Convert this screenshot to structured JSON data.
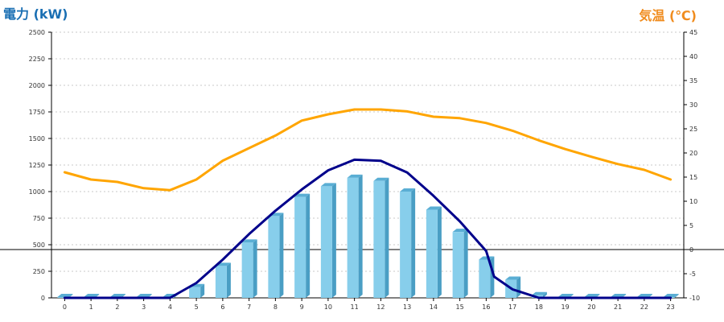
{
  "chart_data": {
    "type": "bar",
    "title_left": "電力 (kW)",
    "title_right": "気温 (℃)",
    "categories": [
      "0",
      "1",
      "2",
      "3",
      "4",
      "5",
      "6",
      "7",
      "8",
      "9",
      "10",
      "11",
      "12",
      "13",
      "14",
      "15",
      "16",
      "17",
      "18",
      "19",
      "20",
      "21",
      "22",
      "23"
    ],
    "y_left": {
      "min": 0,
      "max": 2500,
      "ticks": [
        "0",
        "250",
        "500",
        "750",
        "1000",
        "1250",
        "1500",
        "1750",
        "2000",
        "2250",
        "2500"
      ]
    },
    "y_right": {
      "min": -10,
      "max": 45,
      "ticks": [
        "-10",
        "-5",
        "0",
        "5",
        "10",
        "15",
        "20",
        "25",
        "30",
        "35",
        "40",
        "45"
      ]
    },
    "grid": true,
    "series": [
      {
        "kind": "bar",
        "axis": "left",
        "color": "#87ceeb",
        "values": [
          0,
          0,
          0,
          0,
          0,
          100,
          300,
          520,
          770,
          950,
          1050,
          1130,
          1100,
          1000,
          830,
          620,
          360,
          170,
          25,
          0,
          0,
          0,
          0,
          0
        ]
      },
      {
        "kind": "line",
        "axis": "left",
        "color": "#00008b",
        "x": [
          0,
          4,
          5,
          6,
          7,
          8,
          9,
          10,
          11,
          12,
          13,
          14,
          15,
          16,
          16.3,
          17,
          18,
          23
        ],
        "values": [
          0,
          0,
          140,
          360,
          600,
          820,
          1020,
          1200,
          1300,
          1290,
          1180,
          960,
          720,
          440,
          200,
          80,
          0,
          0
        ]
      },
      {
        "kind": "line",
        "axis": "right",
        "color": "#ffa500",
        "values": [
          16,
          14.5,
          14,
          12.7,
          12.3,
          14.5,
          18.4,
          21,
          23.6,
          26.7,
          28,
          29,
          29,
          28.6,
          27.5,
          27.2,
          26.2,
          24.6,
          22.6,
          20.8,
          19.2,
          17.7,
          16.5,
          14.5
        ]
      }
    ]
  }
}
